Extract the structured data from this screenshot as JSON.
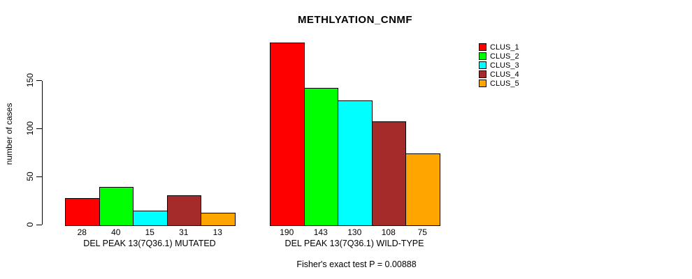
{
  "chart_data": {
    "type": "bar",
    "title": "METHLYATION_CNMF",
    "ylabel": "number of cases",
    "xlabel": "",
    "ylim": [
      0,
      150
    ],
    "yticks": [
      0,
      50,
      100,
      150
    ],
    "grid": false,
    "legend_position": "top-right",
    "categories": [
      "DEL PEAK 13(7Q36.1) MUTATED",
      "DEL PEAK 13(7Q36.1) WILD-TYPE"
    ],
    "series": [
      {
        "name": "CLUS_1",
        "color": "#ff0000",
        "values": [
          28,
          190
        ]
      },
      {
        "name": "CLUS_2",
        "color": "#00ff00",
        "values": [
          40,
          143
        ]
      },
      {
        "name": "CLUS_3",
        "color": "#00ffff",
        "values": [
          15,
          130
        ]
      },
      {
        "name": "CLUS_4",
        "color": "#a52a2a",
        "values": [
          31,
          108
        ]
      },
      {
        "name": "CLUS_5",
        "color": "#ffa500",
        "values": [
          13,
          75
        ]
      }
    ],
    "bar_value_labels": [
      [
        "28",
        "40",
        "15",
        "31",
        "13"
      ],
      [
        "190",
        "143",
        "130",
        "108",
        "75"
      ]
    ],
    "annotation": "Fisher's exact test P = 0.00888"
  }
}
